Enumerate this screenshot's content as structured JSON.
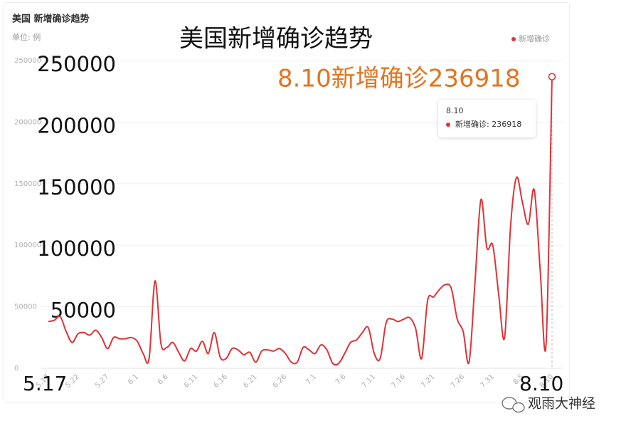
{
  "chart_data": {
    "type": "line",
    "title": "美国 新增确诊趋势",
    "subtitle": "单位: 例",
    "overlay_title": "美国新增确诊趋势",
    "annotation": "8.10新增确诊236918",
    "tooltip": {
      "title": "8.10",
      "text": "新增确诊: 236918"
    },
    "watermark": "观雨大神经",
    "categories": [
      "5.17",
      null,
      null,
      null,
      null,
      "5.22",
      null,
      null,
      null,
      null,
      "5.27",
      null,
      null,
      null,
      null,
      "6.1",
      null,
      null,
      null,
      null,
      "6.6",
      null,
      null,
      null,
      null,
      "6.11",
      null,
      null,
      null,
      null,
      "6.16",
      null,
      null,
      null,
      null,
      "6.21",
      null,
      null,
      null,
      null,
      "6.26",
      null,
      null,
      null,
      null,
      "7.1",
      null,
      null,
      null,
      null,
      "7.6",
      null,
      null,
      null,
      null,
      "7.11",
      null,
      null,
      null,
      null,
      "7.16",
      null,
      null,
      null,
      null,
      "7.21",
      null,
      null,
      null,
      null,
      "7.26",
      null,
      null,
      null,
      null,
      "7.31",
      null,
      null,
      null,
      null,
      "8.5",
      null,
      null,
      null,
      null,
      "8.10"
    ],
    "series": [
      {
        "name": "新增确诊",
        "color": "#e03236",
        "values": [
          38000,
          39000,
          42000,
          30000,
          21000,
          28000,
          29000,
          27000,
          31000,
          25000,
          16000,
          25000,
          24000,
          24000,
          25000,
          22000,
          12000,
          8000,
          71000,
          20000,
          17000,
          21000,
          13000,
          6000,
          16000,
          14000,
          22000,
          12000,
          29000,
          9000,
          8000,
          16000,
          15000,
          11000,
          13000,
          5000,
          14000,
          15000,
          14000,
          16000,
          12000,
          5000,
          5000,
          17000,
          15000,
          12000,
          19000,
          15000,
          4000,
          4000,
          12000,
          21000,
          23000,
          29000,
          33000,
          12000,
          8000,
          37000,
          40000,
          38000,
          40000,
          41000,
          32000,
          8000,
          55000,
          58000,
          64000,
          68000,
          65000,
          40000,
          30000,
          5000,
          70000,
          137000,
          98000,
          100000,
          60000,
          25000,
          115000,
          155000,
          135000,
          117000,
          145000,
          80000,
          20000,
          236918
        ]
      }
    ],
    "ylim": [
      0,
      250000
    ],
    "yticks": [
      0,
      50000,
      100000,
      150000,
      200000,
      250000
    ],
    "grid": true,
    "legend": "top-right"
  }
}
